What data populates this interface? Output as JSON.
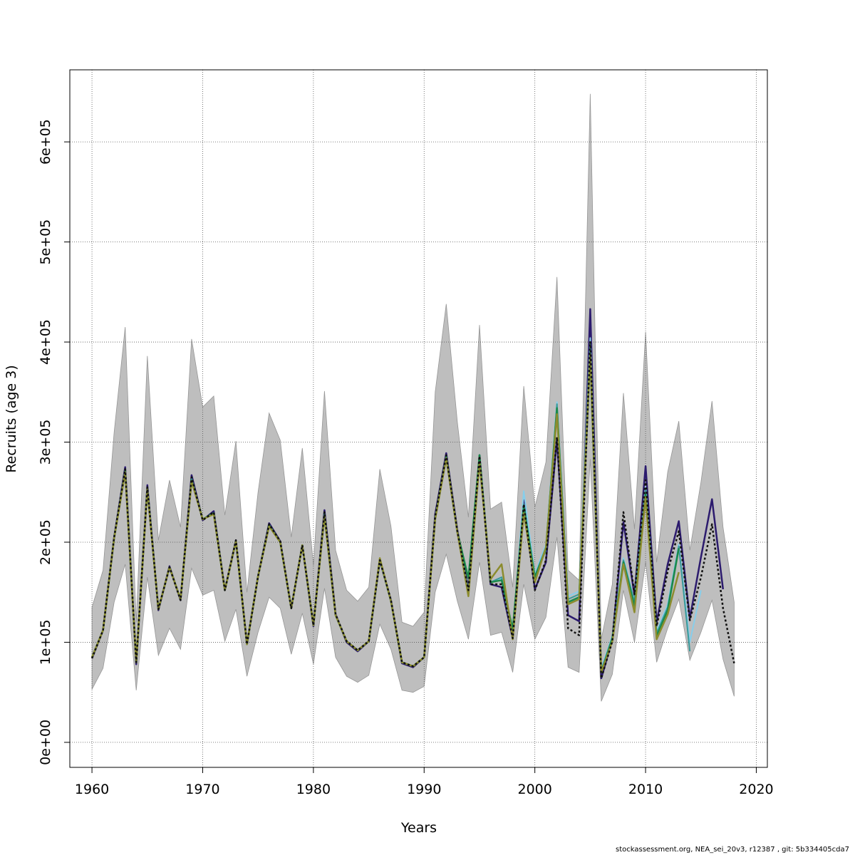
{
  "footer": "stockassessment.org, NEA_sei_20v3, r12387 , git: 5b334405cda7",
  "chart_data": {
    "type": "line",
    "title": "",
    "xlabel": "Years",
    "ylabel": "Recruits (age 3)",
    "xlim": [
      1958,
      2021
    ],
    "ylim": [
      -25000,
      672000
    ],
    "xticks": [
      1960,
      1970,
      1980,
      1990,
      2000,
      2010,
      2020
    ],
    "xtick_labels": [
      "1960",
      "1970",
      "1980",
      "1990",
      "2000",
      "2010",
      "2020"
    ],
    "yticks": [
      0,
      100000,
      200000,
      300000,
      400000,
      500000,
      600000
    ],
    "ytick_labels": [
      "0e+00",
      "1e+05",
      "2e+05",
      "3e+05",
      "4e+05",
      "5e+05",
      "6e+05"
    ],
    "grid": true,
    "band_color": "#bebebe",
    "band_edge_color": "#969696",
    "band": {
      "x": [
        1960,
        1961,
        1962,
        1963,
        1964,
        1965,
        1966,
        1967,
        1968,
        1969,
        1970,
        1971,
        1972,
        1973,
        1974,
        1975,
        1976,
        1977,
        1978,
        1979,
        1980,
        1981,
        1982,
        1983,
        1984,
        1985,
        1986,
        1987,
        1988,
        1989,
        1990,
        1991,
        1992,
        1993,
        1994,
        1995,
        1996,
        1997,
        1998,
        1999,
        2000,
        2001,
        2002,
        2003,
        2004,
        2005,
        2006,
        2007,
        2008,
        2009,
        2010,
        2011,
        2012,
        2013,
        2014,
        2015,
        2016,
        2017,
        2018
      ],
      "upper": [
        135000,
        172000,
        310000,
        415000,
        120000,
        386000,
        202000,
        262000,
        215000,
        403000,
        335000,
        346000,
        227000,
        301000,
        150000,
        250000,
        329000,
        302000,
        205000,
        294000,
        177000,
        351000,
        192000,
        152000,
        141000,
        155000,
        273000,
        216000,
        120000,
        116000,
        130000,
        350000,
        438000,
        320000,
        225000,
        417000,
        233000,
        240000,
        155000,
        356000,
        235000,
        280000,
        465000,
        172000,
        162000,
        648000,
        103000,
        158000,
        349000,
        213000,
        410000,
        180000,
        270000,
        321000,
        192000,
        260000,
        341000,
        215000,
        140000
      ],
      "lower": [
        53000,
        74000,
        140000,
        178000,
        52000,
        165000,
        87000,
        114000,
        93000,
        174000,
        147000,
        152000,
        101000,
        133000,
        66000,
        110000,
        145000,
        134000,
        88000,
        129000,
        78000,
        154000,
        85000,
        66000,
        60000,
        67000,
        118000,
        93000,
        52000,
        50000,
        56000,
        150000,
        188000,
        141000,
        103000,
        180000,
        107000,
        110000,
        70000,
        158000,
        103000,
        125000,
        205000,
        75000,
        70000,
        283000,
        41000,
        68000,
        152000,
        100000,
        180000,
        80000,
        114000,
        143000,
        82000,
        110000,
        142000,
        83000,
        46000
      ]
    },
    "series": [
      {
        "color": "#2c1b6e",
        "width": 2.5,
        "dash": false,
        "x": [
          1960,
          1961,
          1962,
          1963,
          1964,
          1965,
          1966,
          1967,
          1968,
          1969,
          1970,
          1971,
          1972,
          1973,
          1974,
          1975,
          1976,
          1977,
          1978,
          1979,
          1980,
          1981,
          1982,
          1983,
          1984,
          1985,
          1986,
          1987,
          1988,
          1989,
          1990,
          1991,
          1992,
          1993,
          1994,
          1995,
          1996,
          1997,
          1998,
          1999,
          2000,
          2001,
          2002,
          2003,
          2004,
          2005,
          2006,
          2007,
          2008,
          2009,
          2010,
          2011,
          2012,
          2013,
          2014,
          2015,
          2016,
          2017
        ],
        "values": [
          84000,
          112000,
          205000,
          275000,
          78000,
          257000,
          132000,
          176000,
          142000,
          267000,
          222000,
          231000,
          152000,
          202000,
          98000,
          166000,
          219000,
          201000,
          134000,
          197000,
          116000,
          232000,
          128000,
          100000,
          91000,
          101000,
          182000,
          142000,
          79000,
          75000,
          85000,
          228000,
          289000,
          212000,
          153000,
          287000,
          158000,
          155000,
          104000,
          242000,
          153000,
          180000,
          303000,
          127000,
          121000,
          433000,
          64000,
          103000,
          220000,
          147000,
          276000,
          120000,
          178000,
          221000,
          124000,
          185000,
          243000,
          153000
        ]
      },
      {
        "color": "#87ceeb",
        "width": 2,
        "dash": false,
        "x": [
          1960,
          1961,
          1962,
          1963,
          1964,
          1965,
          1966,
          1967,
          1968,
          1969,
          1970,
          1971,
          1972,
          1973,
          1974,
          1975,
          1976,
          1977,
          1978,
          1979,
          1980,
          1981,
          1982,
          1983,
          1984,
          1985,
          1986,
          1987,
          1988,
          1989,
          1990,
          1991,
          1992,
          1993,
          1994,
          1995,
          1996,
          1997,
          1998,
          1999,
          2000,
          2001,
          2002,
          2003,
          2004,
          2005,
          2006,
          2007,
          2008,
          2009,
          2010,
          2011,
          2012,
          2013,
          2014,
          2015
        ],
        "values": [
          85000,
          112000,
          205000,
          272000,
          80000,
          254000,
          133000,
          175000,
          143000,
          263000,
          223000,
          229000,
          152000,
          201000,
          98000,
          166000,
          217000,
          200000,
          134000,
          197000,
          117000,
          228000,
          127000,
          101000,
          92000,
          101000,
          183000,
          141000,
          80000,
          76000,
          85000,
          225000,
          286000,
          210000,
          150000,
          286000,
          160000,
          163000,
          107000,
          251000,
          168000,
          198000,
          340000,
          146000,
          151000,
          404000,
          74000,
          106000,
          184000,
          141000,
          255000,
          111000,
          138000,
          198000,
          100000,
          152000
        ]
      },
      {
        "color": "#3a9a9a",
        "width": 2,
        "dash": false,
        "x": [
          1960,
          1961,
          1962,
          1963,
          1964,
          1965,
          1966,
          1967,
          1968,
          1969,
          1970,
          1971,
          1972,
          1973,
          1974,
          1975,
          1976,
          1977,
          1978,
          1979,
          1980,
          1981,
          1982,
          1983,
          1984,
          1985,
          1986,
          1987,
          1988,
          1989,
          1990,
          1991,
          1992,
          1993,
          1994,
          1995,
          1996,
          1997,
          1998,
          1999,
          2000,
          2001,
          2002,
          2003,
          2004,
          2005,
          2006,
          2007,
          2008,
          2009,
          2010,
          2011,
          2012,
          2013,
          2014
        ],
        "values": [
          85000,
          112000,
          205000,
          272000,
          80000,
          254000,
          133000,
          175000,
          143000,
          263000,
          223000,
          229000,
          152000,
          201000,
          98000,
          166000,
          217000,
          200000,
          134000,
          197000,
          117000,
          228000,
          127000,
          101000,
          92000,
          101000,
          183000,
          141000,
          80000,
          76000,
          85000,
          225000,
          286000,
          210000,
          150000,
          286000,
          160000,
          165000,
          110000,
          238000,
          166000,
          195000,
          338000,
          143000,
          148000,
          398000,
          72000,
          105000,
          182000,
          140000,
          252000,
          109000,
          135000,
          196000,
          91000
        ]
      },
      {
        "color": "#1b8a4a",
        "width": 2.5,
        "dash": false,
        "x": [
          1960,
          1961,
          1962,
          1963,
          1964,
          1965,
          1966,
          1967,
          1968,
          1969,
          1970,
          1971,
          1972,
          1973,
          1974,
          1975,
          1976,
          1977,
          1978,
          1979,
          1980,
          1981,
          1982,
          1983,
          1984,
          1985,
          1986,
          1987,
          1988,
          1989,
          1990,
          1991,
          1992,
          1993,
          1994,
          1995,
          1996,
          1997,
          1998,
          1999,
          2000,
          2001,
          2002,
          2003,
          2004,
          2005,
          2006,
          2007,
          2008,
          2009,
          2010,
          2011,
          2012,
          2013
        ],
        "values": [
          85000,
          112000,
          204000,
          271000,
          80000,
          254000,
          133000,
          175000,
          143000,
          262000,
          223000,
          229000,
          152000,
          201000,
          98000,
          166000,
          217000,
          200000,
          134000,
          197000,
          117000,
          227000,
          127000,
          101000,
          92000,
          101000,
          183000,
          141000,
          80000,
          76000,
          85000,
          224000,
          285000,
          210000,
          164000,
          287000,
          160000,
          162000,
          113000,
          236000,
          165000,
          193000,
          334000,
          140000,
          145000,
          386000,
          70000,
          104000,
          180000,
          136000,
          248000,
          106000,
          132000,
          194000
        ]
      },
      {
        "color": "#8c8c2e",
        "width": 2.5,
        "dash": false,
        "x": [
          1960,
          1961,
          1962,
          1963,
          1964,
          1965,
          1966,
          1967,
          1968,
          1969,
          1970,
          1971,
          1972,
          1973,
          1974,
          1975,
          1976,
          1977,
          1978,
          1979,
          1980,
          1981,
          1982,
          1983,
          1984,
          1985,
          1986,
          1987,
          1988,
          1989,
          1990,
          1991,
          1992,
          1993,
          1994,
          1995,
          1996,
          1997,
          1998,
          1999,
          2000,
          2001,
          2002,
          2003,
          2004,
          2005,
          2006,
          2007,
          2008,
          2009,
          2010,
          2011,
          2012,
          2013
        ],
        "values": [
          85000,
          112000,
          204000,
          270000,
          80000,
          253000,
          133000,
          175000,
          143000,
          261000,
          223000,
          228000,
          152000,
          201000,
          98000,
          166000,
          216000,
          200000,
          134000,
          197000,
          117000,
          226000,
          127000,
          101000,
          92000,
          101000,
          184000,
          141000,
          80000,
          76000,
          85000,
          223000,
          284000,
          210000,
          146000,
          280000,
          163000,
          178000,
          103000,
          229000,
          160000,
          195000,
          328000,
          138000,
          143000,
          388000,
          70000,
          101000,
          178000,
          130000,
          245000,
          103000,
          128000,
          170000
        ]
      },
      {
        "color": "#111111",
        "width": 2.5,
        "dash": true,
        "x": [
          1960,
          1961,
          1962,
          1963,
          1964,
          1965,
          1966,
          1967,
          1968,
          1969,
          1970,
          1971,
          1972,
          1973,
          1974,
          1975,
          1976,
          1977,
          1978,
          1979,
          1980,
          1981,
          1982,
          1983,
          1984,
          1985,
          1986,
          1987,
          1988,
          1989,
          1990,
          1991,
          1992,
          1993,
          1994,
          1995,
          1996,
          1997,
          1998,
          1999,
          2000,
          2001,
          2002,
          2003,
          2004,
          2005,
          2006,
          2007,
          2008,
          2009,
          2010,
          2011,
          2012,
          2013,
          2014,
          2015,
          2016,
          2017,
          2018
        ],
        "values": [
          84000,
          112000,
          205000,
          273000,
          80000,
          255000,
          133000,
          175000,
          142000,
          265000,
          222000,
          230000,
          152000,
          202000,
          98000,
          166000,
          218000,
          201000,
          134000,
          197000,
          117000,
          230000,
          128000,
          101000,
          92000,
          101000,
          182000,
          142000,
          80000,
          76000,
          85000,
          226000,
          287000,
          211000,
          152000,
          286000,
          158000,
          158000,
          104000,
          238000,
          152000,
          182000,
          305000,
          114000,
          107000,
          400000,
          64000,
          101000,
          230000,
          148000,
          262000,
          116000,
          171000,
          211000,
          122000,
          165000,
          218000,
          134000,
          79000
        ]
      }
    ]
  }
}
